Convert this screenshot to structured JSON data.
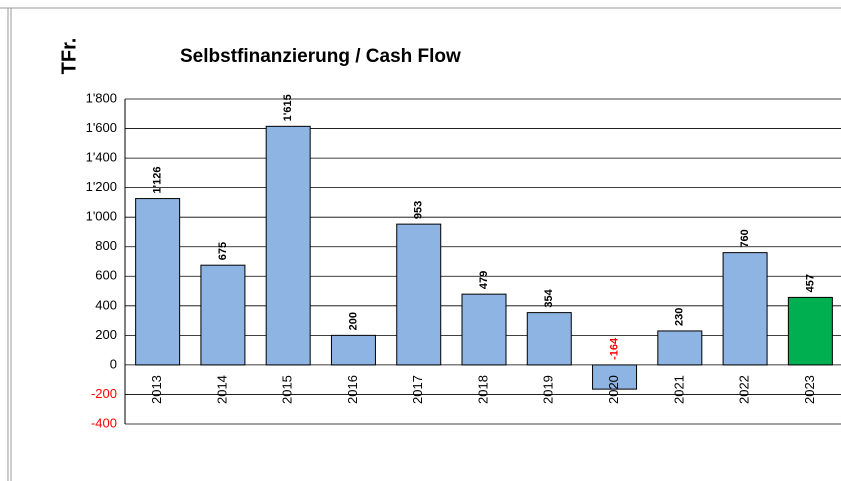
{
  "chart_data": {
    "type": "bar",
    "title": "Selbstfinanzierung / Cash Flow",
    "y_label": "TFr.",
    "categories": [
      "2013",
      "2014",
      "2015",
      "2016",
      "2017",
      "2018",
      "2019",
      "2020",
      "2021",
      "2022",
      "2023"
    ],
    "values": [
      1126,
      675,
      1615,
      200,
      953,
      479,
      354,
      -164,
      230,
      760,
      457
    ],
    "value_labels": [
      "1'126",
      "675",
      "1'615",
      "200",
      "953",
      "479",
      "354",
      "-164",
      "230",
      "760",
      "457"
    ],
    "colors": [
      "#8db4e2",
      "#8db4e2",
      "#8db4e2",
      "#8db4e2",
      "#8db4e2",
      "#8db4e2",
      "#8db4e2",
      "#8db4e2",
      "#8db4e2",
      "#8db4e2",
      "#00b050"
    ],
    "negative_color": "#ff0000",
    "ylim": [
      -400,
      1800
    ],
    "yticks": [
      -400,
      -200,
      0,
      200,
      400,
      600,
      800,
      {
        "value": 1000,
        "label": "1'000"
      },
      {
        "value": 1200,
        "label": "1'200"
      },
      {
        "value": 1400,
        "label": "1'400"
      },
      {
        "value": 1600,
        "label": "1'600"
      },
      {
        "value": 1800,
        "label": "1'800"
      }
    ],
    "grid": true
  }
}
